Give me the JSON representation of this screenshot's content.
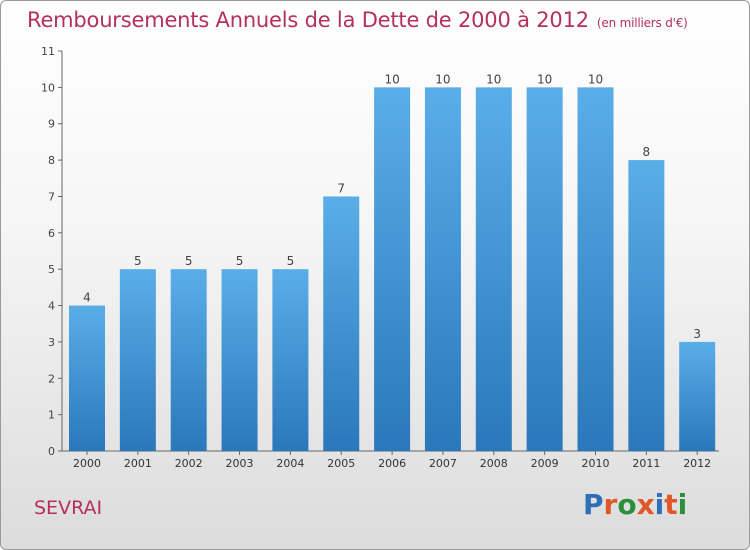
{
  "title": "Remboursements Annuels de la Dette de 2000 à 2012",
  "unit": "(en milliers d'€)",
  "commune": "SEVRAI",
  "logo": {
    "text": "Proxiti",
    "letter_colors": [
      "#2f6fb8",
      "#e0582a",
      "#2c8f3a",
      "#e0582a",
      "#2f6fb8",
      "#e0582a",
      "#2c8f3a"
    ]
  },
  "chart_data": {
    "type": "bar",
    "categories": [
      "2000",
      "2001",
      "2002",
      "2003",
      "2004",
      "2005",
      "2006",
      "2007",
      "2008",
      "2009",
      "2010",
      "2011",
      "2012"
    ],
    "values": [
      4,
      5,
      5,
      5,
      5,
      7,
      10,
      10,
      10,
      10,
      10,
      8,
      3
    ],
    "ylim": [
      0,
      11
    ],
    "yticks": [
      0,
      1,
      2,
      3,
      4,
      5,
      6,
      7,
      8,
      9,
      10,
      11
    ],
    "grid": false,
    "bar_color_top": "#5aaee8",
    "bar_color_bottom": "#2a78bb",
    "title_color": "#b5305d"
  }
}
